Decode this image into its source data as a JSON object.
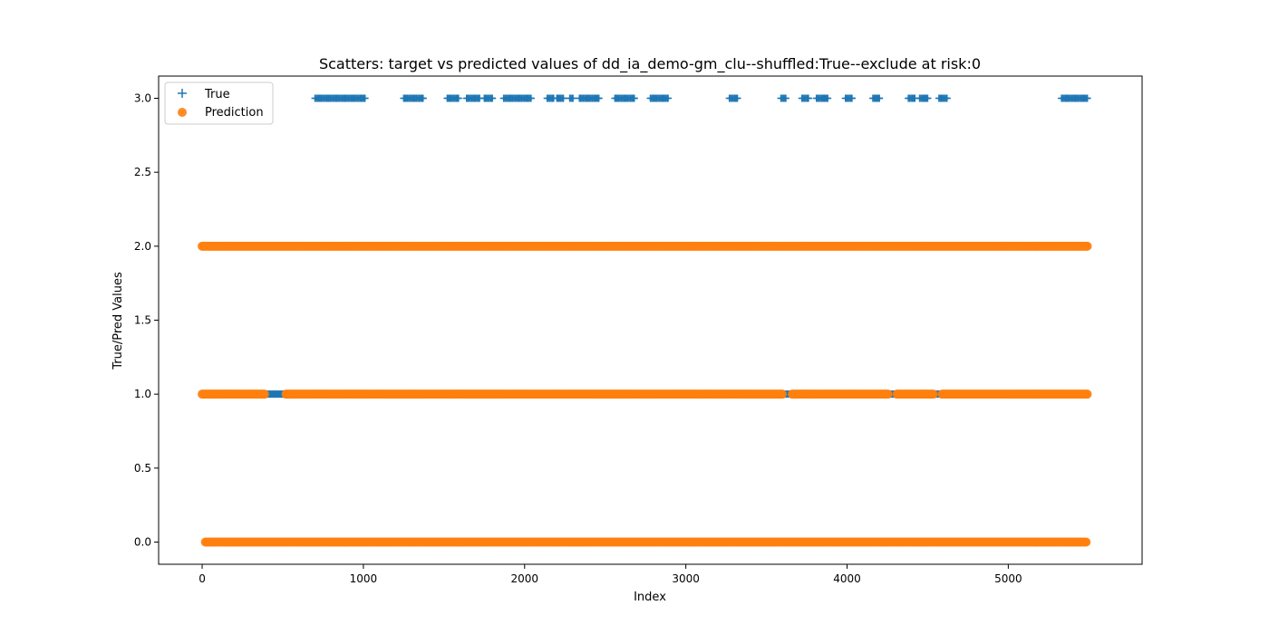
{
  "chart_data": {
    "type": "scatter",
    "title": "Scatters: target vs predicted values of dd_ia_demo-gm_clu--shuffled:True--exclude at risk:0",
    "xlabel": "Index",
    "ylabel": "True/Pred Values",
    "xlim": [
      -270,
      5830
    ],
    "ylim": [
      -0.15,
      3.15
    ],
    "xticks": [
      0,
      1000,
      2000,
      3000,
      4000,
      5000
    ],
    "xtick_labels": [
      "0",
      "1000",
      "2000",
      "3000",
      "4000",
      "5000"
    ],
    "yticks": [
      0.0,
      0.5,
      1.0,
      1.5,
      2.0,
      2.5,
      3.0
    ],
    "ytick_labels": [
      "0.0",
      "0.5",
      "1.0",
      "1.5",
      "2.0",
      "2.5",
      "3.0"
    ],
    "grid": false,
    "legend_position": "top-left",
    "series": [
      {
        "name": "True",
        "marker": "plus",
        "color": "#1f77b4",
        "points_summary": "dense markers along y=3 at index ranges listed in y3_ranges; dense markers along y=1 hidden beneath predictions; visible at gaps near 400-550, 3620, 4280, 4560",
        "y3_ranges": [
          [
            700,
            1010
          ],
          [
            1250,
            1370
          ],
          [
            1520,
            1590
          ],
          [
            1640,
            1720
          ],
          [
            1750,
            1800
          ],
          [
            1870,
            2040
          ],
          [
            2140,
            2180
          ],
          [
            2200,
            2240
          ],
          [
            2280,
            2300
          ],
          [
            2340,
            2460
          ],
          [
            2560,
            2680
          ],
          [
            2780,
            2890
          ],
          [
            3270,
            3320
          ],
          [
            3590,
            3620
          ],
          [
            3720,
            3760
          ],
          [
            3810,
            3880
          ],
          [
            3990,
            4030
          ],
          [
            4160,
            4200
          ],
          [
            4380,
            4420
          ],
          [
            4450,
            4500
          ],
          [
            4570,
            4620
          ],
          [
            5330,
            5490
          ]
        ],
        "y1_visible_ranges": [
          [
            400,
            560
          ],
          [
            3610,
            3650
          ],
          [
            4270,
            4300
          ],
          [
            4550,
            4580
          ]
        ]
      },
      {
        "name": "Prediction",
        "marker": "circle",
        "color": "#ff7f0e",
        "points_summary": "dense markers along y=0 (index ~0-5490), y=1 (index ~0-5490), y=2 (index ~0-5490)",
        "levels": [
          {
            "y": 0,
            "ranges": [
              [
                20,
                5490
              ]
            ]
          },
          {
            "y": 1,
            "ranges": [
              [
                0,
                390
              ],
              [
                520,
                3600
              ],
              [
                3660,
                4260
              ],
              [
                4310,
                4540
              ],
              [
                4590,
                5490
              ]
            ]
          },
          {
            "y": 2,
            "ranges": [
              [
                0,
                5490
              ]
            ]
          }
        ]
      }
    ]
  }
}
